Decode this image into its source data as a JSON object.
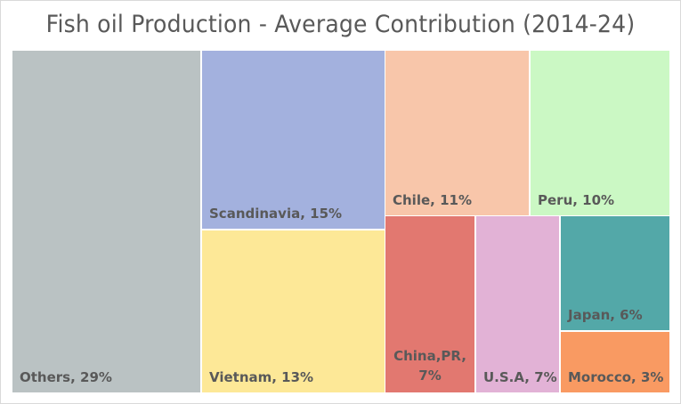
{
  "chart_data": {
    "type": "treemap",
    "title": "Fish oil Production - Average Contribution (2014-24)",
    "items": [
      {
        "name": "Others",
        "value": 29,
        "label": "Others, 29%",
        "color": "#bac2c3"
      },
      {
        "name": "Scandinavia",
        "value": 15,
        "label": "Scandinavia, 15%",
        "color": "#a3b1de"
      },
      {
        "name": "Vietnam",
        "value": 13,
        "label": "Vietnam, 13%",
        "color": "#fde897"
      },
      {
        "name": "Chile",
        "value": 11,
        "label": "Chile, 11%",
        "color": "#f8c6aa"
      },
      {
        "name": "Peru",
        "value": 10,
        "label": "Peru, 10%",
        "color": "#cbf8c4"
      },
      {
        "name": "China,PR",
        "value": 7,
        "label": "China,PR, 7%",
        "color": "#e27870"
      },
      {
        "name": "U.S.A",
        "value": 7,
        "label": "U.S.A, 7%",
        "color": "#e2b2d6"
      },
      {
        "name": "Japan",
        "value": 6,
        "label": "Japan, 6%",
        "color": "#53a8a8"
      },
      {
        "name": "Morocco",
        "value": 3,
        "label": "Morocco, 3%",
        "color": "#f99a62"
      }
    ]
  }
}
